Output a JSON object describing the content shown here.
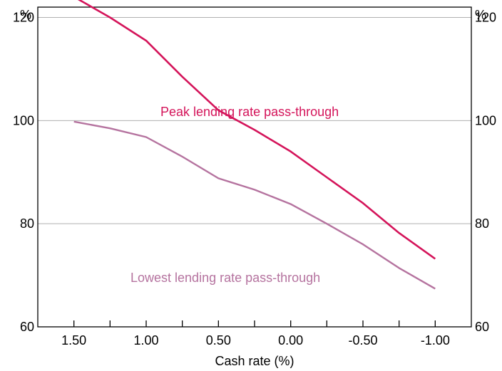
{
  "chart_data": {
    "type": "line",
    "xlabel": "Cash rate (%)",
    "y_unit_left": "%",
    "y_unit_right": "%",
    "x_ticks": [
      "1.50",
      "1.00",
      "0.50",
      "0.00",
      "-0.50",
      "-1.00"
    ],
    "x_tick_values": [
      1.5,
      1.0,
      0.5,
      0.0,
      -0.5,
      -1.0
    ],
    "xlim": [
      1.75,
      -1.25
    ],
    "ylim": [
      60,
      122
    ],
    "y_ticks": [
      "60",
      "80",
      "100",
      "120"
    ],
    "y_tick_values": [
      60,
      80,
      100,
      120
    ],
    "grid": true,
    "series": [
      {
        "name": "Peak lending rate pass-through",
        "color": "#d4145a",
        "x": [
          1.5,
          1.25,
          1.0,
          0.75,
          0.5,
          0.25,
          0.0,
          -0.25,
          -0.5,
          -0.75,
          -1.0
        ],
        "values": [
          124.0,
          120.0,
          115.5,
          108.5,
          102.0,
          98.2,
          94.0,
          89.0,
          84.0,
          78.2,
          73.2
        ]
      },
      {
        "name": "Lowest lending rate pass-through",
        "color": "#b5739f",
        "x": [
          1.5,
          1.25,
          1.0,
          0.75,
          0.5,
          0.25,
          0.0,
          -0.25,
          -0.5,
          -0.75,
          -1.0
        ],
        "values": [
          99.8,
          98.5,
          96.8,
          93.0,
          88.8,
          86.6,
          83.8,
          80.0,
          76.0,
          71.4,
          67.4
        ]
      }
    ]
  }
}
